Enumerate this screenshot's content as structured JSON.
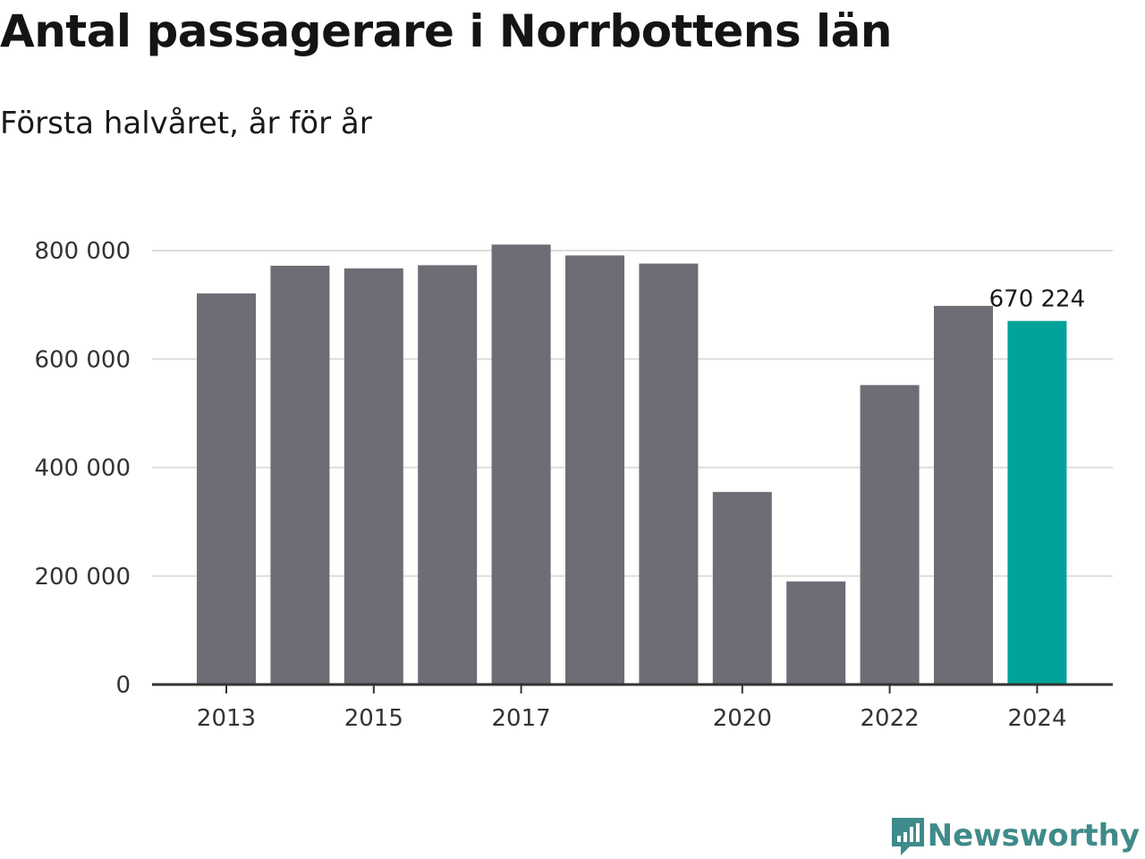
{
  "title": "Antal passagerare i Norrbottens län",
  "subtitle": "Första halvåret, år för år",
  "brand": "Newsworthy",
  "colors": {
    "bar": "#6e6d75",
    "highlight": "#00a39a",
    "grid": "#dddddd",
    "axis": "#333333",
    "brand": "#3f8a8a"
  },
  "chart_data": {
    "type": "bar",
    "title": "Antal passagerare i Norrbottens län",
    "subtitle": "Första halvåret, år för år",
    "categories": [
      "2013",
      "2014",
      "2015",
      "2016",
      "2017",
      "2018",
      "2019",
      "2020",
      "2021",
      "2022",
      "2023",
      "2024"
    ],
    "values": [
      721000,
      772000,
      767000,
      773000,
      811000,
      791000,
      776000,
      355000,
      190000,
      552000,
      698000,
      670224
    ],
    "highlight_index": 11,
    "data_labels": [
      {
        "index": 11,
        "text": "670 224"
      }
    ],
    "ylim": [
      0,
      800000
    ],
    "yticks": [
      0,
      200000,
      400000,
      600000,
      800000
    ],
    "ytick_labels": [
      "0",
      "200 000",
      "400 000",
      "600 000",
      "800 000"
    ],
    "xtick_labels": [
      {
        "index": 0,
        "text": "2013"
      },
      {
        "index": 2,
        "text": "2015"
      },
      {
        "index": 4,
        "text": "2017"
      },
      {
        "index": 7,
        "text": "2020"
      },
      {
        "index": 9,
        "text": "2022"
      },
      {
        "index": 11,
        "text": "2024"
      }
    ],
    "grid": true,
    "legend": "none",
    "xlabel": "",
    "ylabel": ""
  }
}
